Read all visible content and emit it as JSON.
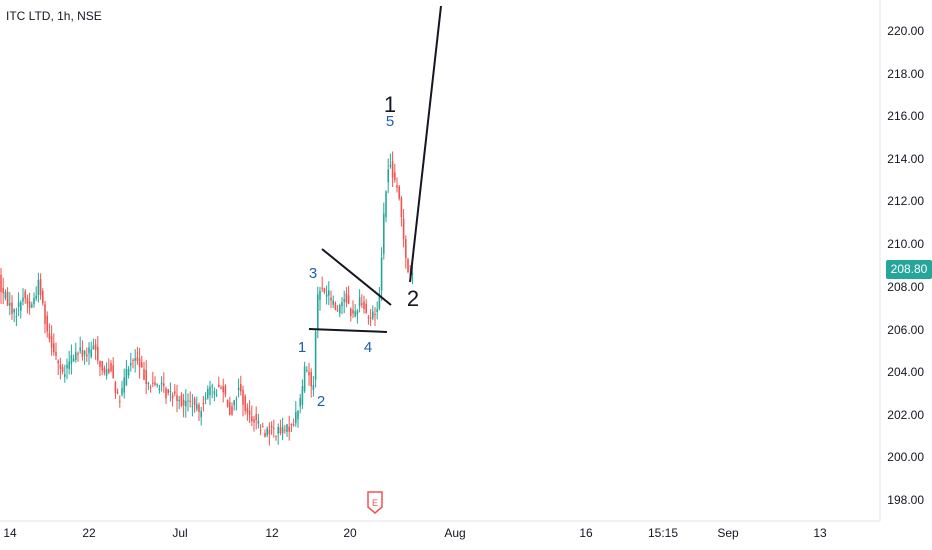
{
  "symbol": {
    "title": "ITC LTD, 1h, NSE"
  },
  "price_axis": {
    "ticks": [
      "220.00",
      "218.00",
      "216.00",
      "214.00",
      "212.00",
      "210.00",
      "208.00",
      "206.00",
      "204.00",
      "202.00",
      "200.00",
      "198.00"
    ],
    "current_price": "208.80"
  },
  "time_axis": {
    "ticks": [
      "14",
      "22",
      "Jul",
      "12",
      "20",
      "Aug",
      "16",
      "15:15",
      "Sep",
      "13"
    ]
  },
  "wave_labels": {
    "major_1": "1",
    "major_2": "2",
    "minor_1": "1",
    "minor_2": "2",
    "minor_3": "3",
    "minor_4": "4",
    "minor_5": "5"
  },
  "earnings_marker": {
    "label": "E"
  },
  "colors": {
    "up": "#26a69a",
    "down": "#ef5350",
    "wave_blue": "#1e5fb4",
    "axis_text": "#131722",
    "separator": "#e0e3eb"
  },
  "chart_data": {
    "type": "candlestick",
    "interval": "1h",
    "ylim": [
      197.5,
      221.5
    ],
    "x_tick_labels": [
      "14",
      "22",
      "Jul",
      "12",
      "20",
      "Aug",
      "16",
      "15:15",
      "Sep",
      "13"
    ],
    "y_tick_labels": [
      "220.00",
      "218.00",
      "216.00",
      "214.00",
      "212.00",
      "210.00",
      "208.00",
      "206.00",
      "204.00",
      "202.00",
      "200.00",
      "198.00"
    ],
    "last_price": 208.8,
    "price_path": [
      [
        0,
        208.3
      ],
      [
        8,
        207.7
      ],
      [
        16,
        207.0
      ],
      [
        24,
        207.9
      ],
      [
        32,
        207.3
      ],
      [
        40,
        208.5
      ],
      [
        48,
        206.3
      ],
      [
        56,
        205.3
      ],
      [
        64,
        204.1
      ],
      [
        72,
        205.0
      ],
      [
        80,
        205.3
      ],
      [
        88,
        205.2
      ],
      [
        96,
        205.5
      ],
      [
        104,
        204.3
      ],
      [
        112,
        204.6
      ],
      [
        120,
        202.9
      ],
      [
        128,
        204.5
      ],
      [
        136,
        205.0
      ],
      [
        144,
        204.3
      ],
      [
        152,
        203.7
      ],
      [
        160,
        203.8
      ],
      [
        168,
        203.3
      ],
      [
        176,
        203.4
      ],
      [
        184,
        202.9
      ],
      [
        192,
        203.0
      ],
      [
        200,
        202.5
      ],
      [
        208,
        203.5
      ],
      [
        216,
        203.5
      ],
      [
        224,
        203.7
      ],
      [
        232,
        202.4
      ],
      [
        240,
        203.7
      ],
      [
        248,
        202.4
      ],
      [
        256,
        202.2
      ],
      [
        264,
        201.6
      ],
      [
        272,
        201.7
      ],
      [
        280,
        201.6
      ],
      [
        288,
        201.7
      ],
      [
        296,
        202.2
      ],
      [
        302,
        203.2
      ],
      [
        306,
        204.6
      ],
      [
        310,
        204.3
      ],
      [
        314,
        203.3
      ],
      [
        316,
        205.8
      ],
      [
        318,
        207.7
      ],
      [
        322,
        208.2
      ],
      [
        330,
        207.9
      ],
      [
        338,
        207.2
      ],
      [
        346,
        207.9
      ],
      [
        354,
        206.9
      ],
      [
        362,
        207.8
      ],
      [
        370,
        206.8
      ],
      [
        376,
        207.1
      ],
      [
        380,
        207.5
      ],
      [
        384,
        211.0
      ],
      [
        388,
        213.5
      ],
      [
        392,
        213.9
      ],
      [
        396,
        213.0
      ],
      [
        400,
        212.4
      ],
      [
        404,
        211.0
      ],
      [
        408,
        209.2
      ],
      [
        412,
        208.7
      ],
      [
        414,
        208.8
      ]
    ],
    "annotations": {
      "trend_line": [
        [
          410,
          208.0
        ],
        [
          441,
          221.5
        ]
      ],
      "triangle_upper": [
        [
          322,
          209.7
        ],
        [
          391,
          207.2
        ]
      ],
      "triangle_lower": [
        [
          309,
          206.0
        ],
        [
          387,
          205.8
        ]
      ],
      "wave_points": {
        "1_major": [
          390,
          216.3
        ],
        "2_major": [
          413,
          207.6
        ],
        "minor_1": [
          302,
          205.1
        ],
        "minor_2": [
          320,
          202.6
        ],
        "minor_3": [
          313,
          208.9
        ],
        "minor_4": [
          368,
          205.0
        ],
        "minor_5": [
          390,
          215.2
        ]
      }
    }
  }
}
